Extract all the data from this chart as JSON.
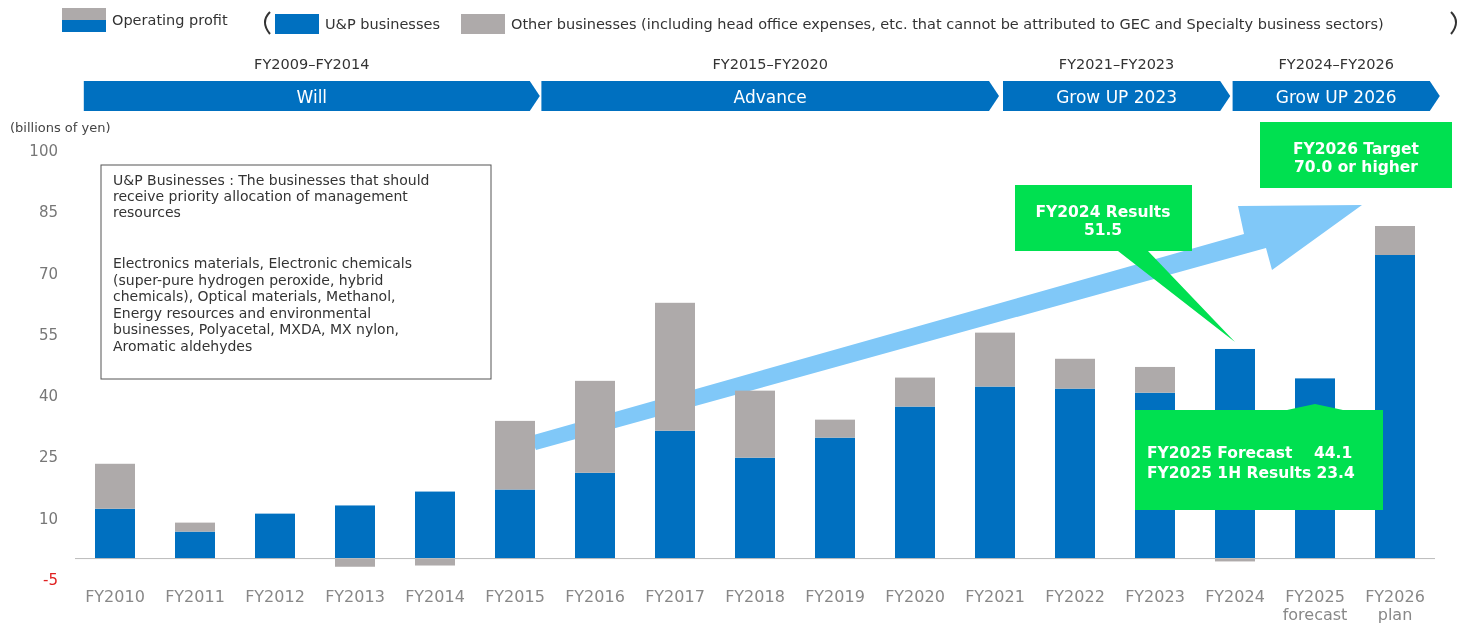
{
  "chart_data": {
    "type": "bar",
    "stacked": true,
    "ylabel": "(billions of yen)",
    "legend_title": "Operating profit",
    "legend": "top",
    "categories": [
      "FY2010",
      "FY2011",
      "FY2012",
      "FY2013",
      "FY2014",
      "FY2015",
      "FY2016",
      "FY2017",
      "FY2018",
      "FY2019",
      "FY2020",
      "FY2021",
      "FY2022",
      "FY2023",
      "FY2024",
      "FY2025\nforecast",
      "FY2026\nplan"
    ],
    "series": [
      {
        "name": "U&P businesses",
        "color": "#0070c0",
        "values": [
          12.2,
          6.6,
          11.0,
          13.0,
          16.4,
          16.9,
          21.0,
          31.3,
          24.7,
          29.6,
          37.2,
          42.1,
          41.6,
          40.6,
          51.3,
          44.1,
          74.3
        ]
      },
      {
        "name": "Other businesses (including head office expenses, etc. that cannot be attributed to GEC and Specialty business sectors)",
        "color": "#aeaaaa",
        "values": [
          11.0,
          2.2,
          0,
          -2.0,
          -1.7,
          16.8,
          22.5,
          31.3,
          16.4,
          4.4,
          7.1,
          13.2,
          7.3,
          6.3,
          -0.7,
          0,
          7.1
        ]
      }
    ],
    "ylim": [
      -5,
      100
    ],
    "yticks": [
      -5,
      10,
      25,
      40,
      55,
      70,
      85,
      100
    ],
    "grid": false,
    "annotations": [
      "FY2009–FY2014",
      "FY2015–FY2020",
      "FY2021–FY2023",
      "FY2024–FY2026",
      "Will",
      "Advance",
      "Grow UP 2023",
      "Grow UP 2026",
      "U&P Businesses : The businesses that should\nreceive priority allocation of management\nresources",
      "Electronics materials, Electronic chemicals\n(super-pure hydrogen peroxide, hybrid\nchemicals), Optical materials, Methanol,\nEnergy resources and environmental\nbusinesses, Polyacetal, MXDA, MX nylon,\nAromatic aldehydes",
      "FY2024 Results\n51.5",
      "FY2025 Forecast    44.1\nFY2025 1H Results 23.4",
      "FY2026 Target\n70.0 or higher"
    ]
  }
}
